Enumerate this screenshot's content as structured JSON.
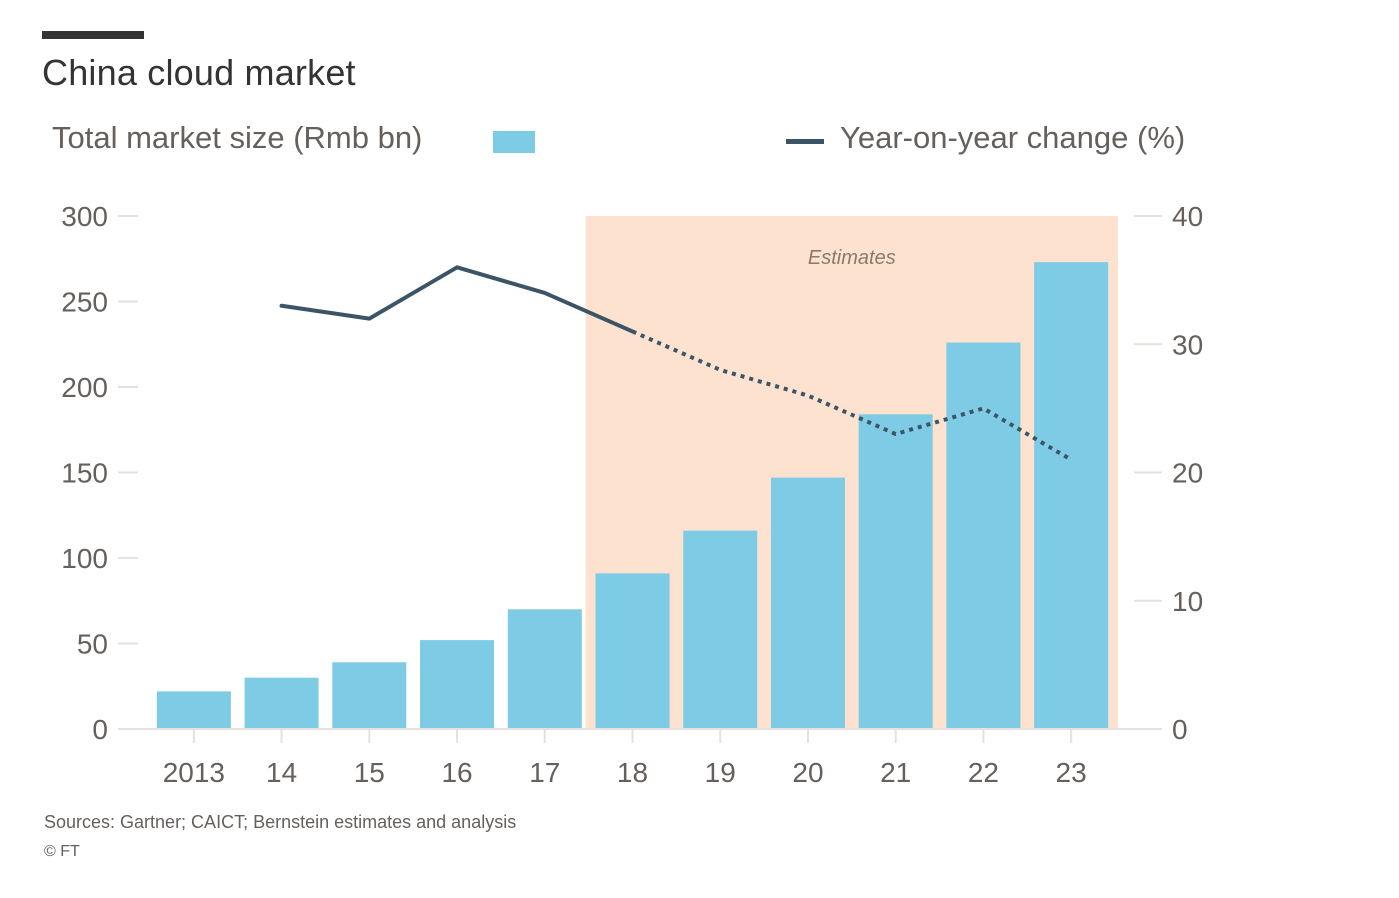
{
  "title": "China cloud market",
  "legend": {
    "bars_label": "Total market size (Rmb bn)",
    "line_label": "Year-on-year change (%)"
  },
  "source": "Sources: Gartner; CAICT; Bernstein estimates and analysis",
  "copyright": "© FT",
  "colors": {
    "bar": "#7ecbe6",
    "line": "#3c5566",
    "estimate_band": "#fde2cf",
    "text": "#66605c",
    "title": "#333333",
    "grid": "#e6e1dc"
  },
  "chart_data": {
    "type": "bar",
    "title": "China cloud market",
    "categories": [
      "2013",
      "14",
      "15",
      "16",
      "17",
      "18",
      "19",
      "20",
      "21",
      "22",
      "23"
    ],
    "series": [
      {
        "name": "Total market size (Rmb bn)",
        "type": "bar",
        "axis": "left",
        "values": [
          22,
          30,
          39,
          52,
          70,
          91,
          116,
          147,
          184,
          226,
          273
        ]
      },
      {
        "name": "Year-on-year change (%)",
        "type": "line",
        "axis": "right",
        "values": [
          null,
          33,
          32,
          36,
          34,
          31,
          28,
          26,
          23,
          25,
          21
        ],
        "estimate_from": "18"
      }
    ],
    "left_axis": {
      "range": [
        0,
        300
      ],
      "ticks": [
        0,
        50,
        100,
        150,
        200,
        250,
        300
      ]
    },
    "right_axis": {
      "range": [
        0,
        40
      ],
      "ticks": [
        0,
        10,
        20,
        30,
        40
      ]
    },
    "estimate_region": {
      "from": "18",
      "to": "23",
      "label": "Estimates"
    },
    "grid": false,
    "legend_position": "top"
  }
}
